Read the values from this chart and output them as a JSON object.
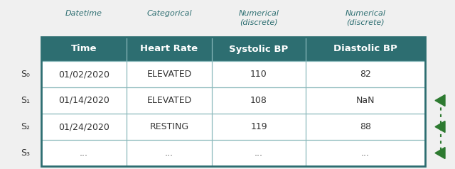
{
  "header_bg_color": "#2d6e71",
  "header_text_color": "#ffffff",
  "cell_bg_color": "#ffffff",
  "cell_text_color": "#333333",
  "border_color": "#2d6e71",
  "row_line_color": "#8ab8bb",
  "index_text_color": "#333333",
  "type_label_color": "#555555",
  "arrow_color": "#2d7a30",
  "bg_color": "#f0f0f0",
  "columns": [
    "Time",
    "Heart Rate",
    "Systolic BP",
    "Diastolic BP"
  ],
  "col_types": [
    "Datetime",
    "Categorical",
    "Numerical\n(discrete)",
    "Numerical\n(discrete)"
  ],
  "rows": [
    [
      "01/02/2020",
      "ELEVATED",
      "110",
      "82"
    ],
    [
      "01/14/2020",
      "ELEVATED",
      "108",
      "NaN"
    ],
    [
      "01/24/2020",
      "RESTING",
      "119",
      "88"
    ],
    [
      "...",
      "...",
      "...",
      "..."
    ]
  ],
  "index_labels": [
    "S₀",
    "S₁",
    "S₂",
    "S₃"
  ],
  "figsize": [
    6.4,
    2.38
  ],
  "dpi": 100
}
